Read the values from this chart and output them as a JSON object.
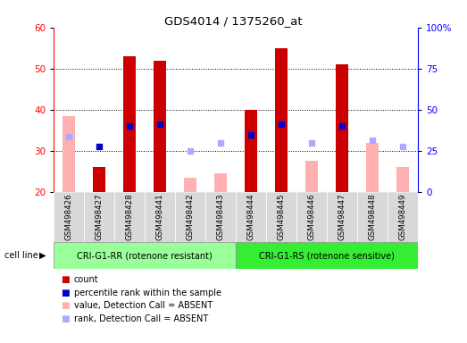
{
  "title": "GDS4014 / 1375260_at",
  "samples": [
    "GSM498426",
    "GSM498427",
    "GSM498428",
    "GSM498441",
    "GSM498442",
    "GSM498443",
    "GSM498444",
    "GSM498445",
    "GSM498446",
    "GSM498447",
    "GSM498448",
    "GSM498449"
  ],
  "group1_label": "CRI-G1-RR (rotenone resistant)",
  "group2_label": "CRI-G1-RS (rotenone sensitive)",
  "group1_count": 6,
  "group2_count": 6,
  "ylim_left": [
    20,
    60
  ],
  "ylim_right": [
    0,
    100
  ],
  "yticks_left": [
    20,
    30,
    40,
    50,
    60
  ],
  "yticks_right": [
    0,
    25,
    50,
    75,
    100
  ],
  "red_bars": [
    null,
    26,
    53,
    52,
    null,
    null,
    40,
    55,
    null,
    51,
    null,
    null
  ],
  "pink_bars": [
    38.5,
    null,
    null,
    null,
    23.5,
    24.5,
    null,
    null,
    27.5,
    null,
    32,
    26
  ],
  "blue_squares": [
    null,
    31,
    36,
    36.5,
    null,
    null,
    34,
    36.5,
    null,
    36,
    null,
    null
  ],
  "lightblue_squares": [
    33.5,
    null,
    null,
    null,
    30,
    32,
    null,
    null,
    32,
    null,
    32.5,
    31
  ],
  "bar_color_red": "#cc0000",
  "bar_color_pink": "#ffb0b0",
  "square_color_blue": "#0000cc",
  "square_color_lightblue": "#aaaaff",
  "group1_color": "#99ff99",
  "group2_color": "#33ee33",
  "bg_color": "#d8d8d8",
  "plot_bg": "#ffffff",
  "legend_items": [
    "count",
    "percentile rank within the sample",
    "value, Detection Call = ABSENT",
    "rank, Detection Call = ABSENT"
  ],
  "legend_colors": [
    "#cc0000",
    "#0000cc",
    "#ffb0b0",
    "#aaaaff"
  ],
  "bar_width": 0.4,
  "square_ms": 4
}
